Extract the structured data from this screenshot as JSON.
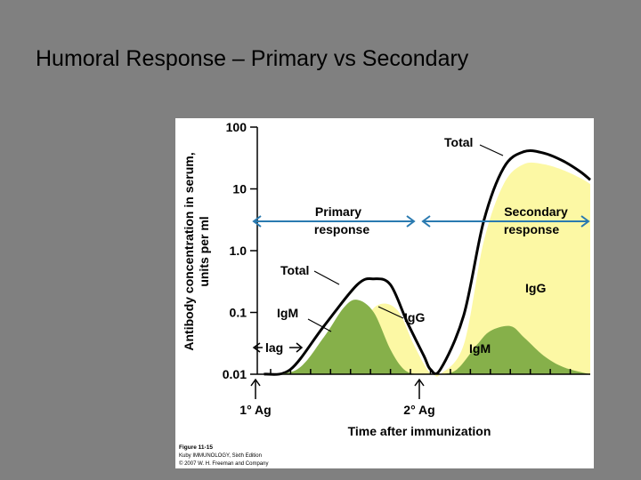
{
  "slide": {
    "title": "Humoral Response – Primary vs Secondary"
  },
  "chart_data": {
    "type": "area",
    "ylabel_line1": "Antibody concentration in serum,",
    "ylabel_line2": "units per ml",
    "xlabel": "Time after immunization",
    "yscale": "log",
    "ylim": [
      0.01,
      100
    ],
    "y_ticks": [
      {
        "value": 100,
        "label": "100"
      },
      {
        "value": 10,
        "label": "10"
      },
      {
        "value": 1,
        "label": "1.0"
      },
      {
        "value": 0.1,
        "label": "0.1"
      },
      {
        "value": 0.01,
        "label": "0.01"
      }
    ],
    "xlim": [
      0,
      100
    ],
    "x_ticks": [
      4,
      10,
      16,
      22,
      28,
      34,
      40,
      46,
      52,
      58,
      64,
      70,
      76,
      82,
      88,
      94
    ],
    "series": [
      {
        "name": "Total",
        "color": "#ffffff",
        "x": [
          2,
          10,
          20,
          30,
          35,
          40,
          45,
          50,
          52,
          55,
          62,
          68,
          74,
          80,
          86,
          92,
          97,
          100
        ],
        "y": [
          0.01,
          0.012,
          0.06,
          0.28,
          0.35,
          0.28,
          0.07,
          0.02,
          0.012,
          0.012,
          0.09,
          3,
          22,
          40,
          38,
          28,
          19,
          14
        ]
      },
      {
        "name": "IgG",
        "color": "#fcf8a4",
        "x": [
          2,
          10,
          20,
          30,
          36,
          42,
          47,
          51,
          53,
          55,
          62,
          68,
          74,
          80,
          86,
          92,
          97,
          100
        ],
        "y": [
          0.01,
          0.01,
          0.012,
          0.05,
          0.13,
          0.11,
          0.03,
          0.012,
          0.01,
          0.01,
          0.03,
          1.4,
          12,
          25,
          25,
          20,
          15,
          12
        ]
      },
      {
        "name": "IgM",
        "color": "#86b04a",
        "x": [
          2,
          12,
          20,
          26,
          30,
          35,
          40,
          44,
          48,
          52,
          55,
          60,
          66,
          70,
          76,
          80,
          86,
          92,
          100
        ],
        "y": [
          0.01,
          0.012,
          0.04,
          0.12,
          0.16,
          0.1,
          0.025,
          0.012,
          0.01,
          0.01,
          0.01,
          0.012,
          0.03,
          0.05,
          0.06,
          0.04,
          0.02,
          0.013,
          0.01
        ]
      }
    ],
    "annotations": {
      "total_primary": "Total",
      "total_secondary": "Total",
      "igm_primary": "IgM",
      "igg_primary": "IgG",
      "igm_secondary": "IgM",
      "igg_secondary": "IgG",
      "primary_response_line1": "Primary",
      "primary_response_line2": "response",
      "secondary_response_line1": "Secondary",
      "secondary_response_line2": "response",
      "lag": "lag",
      "ag1": "1° Ag",
      "ag2": "2° Ag"
    },
    "credit": {
      "line1": "Figure 11-15",
      "line2": "Kuby IMMUNOLOGY, Sixth Edition",
      "line3": "© 2007 W. H. Freeman and Company"
    }
  }
}
